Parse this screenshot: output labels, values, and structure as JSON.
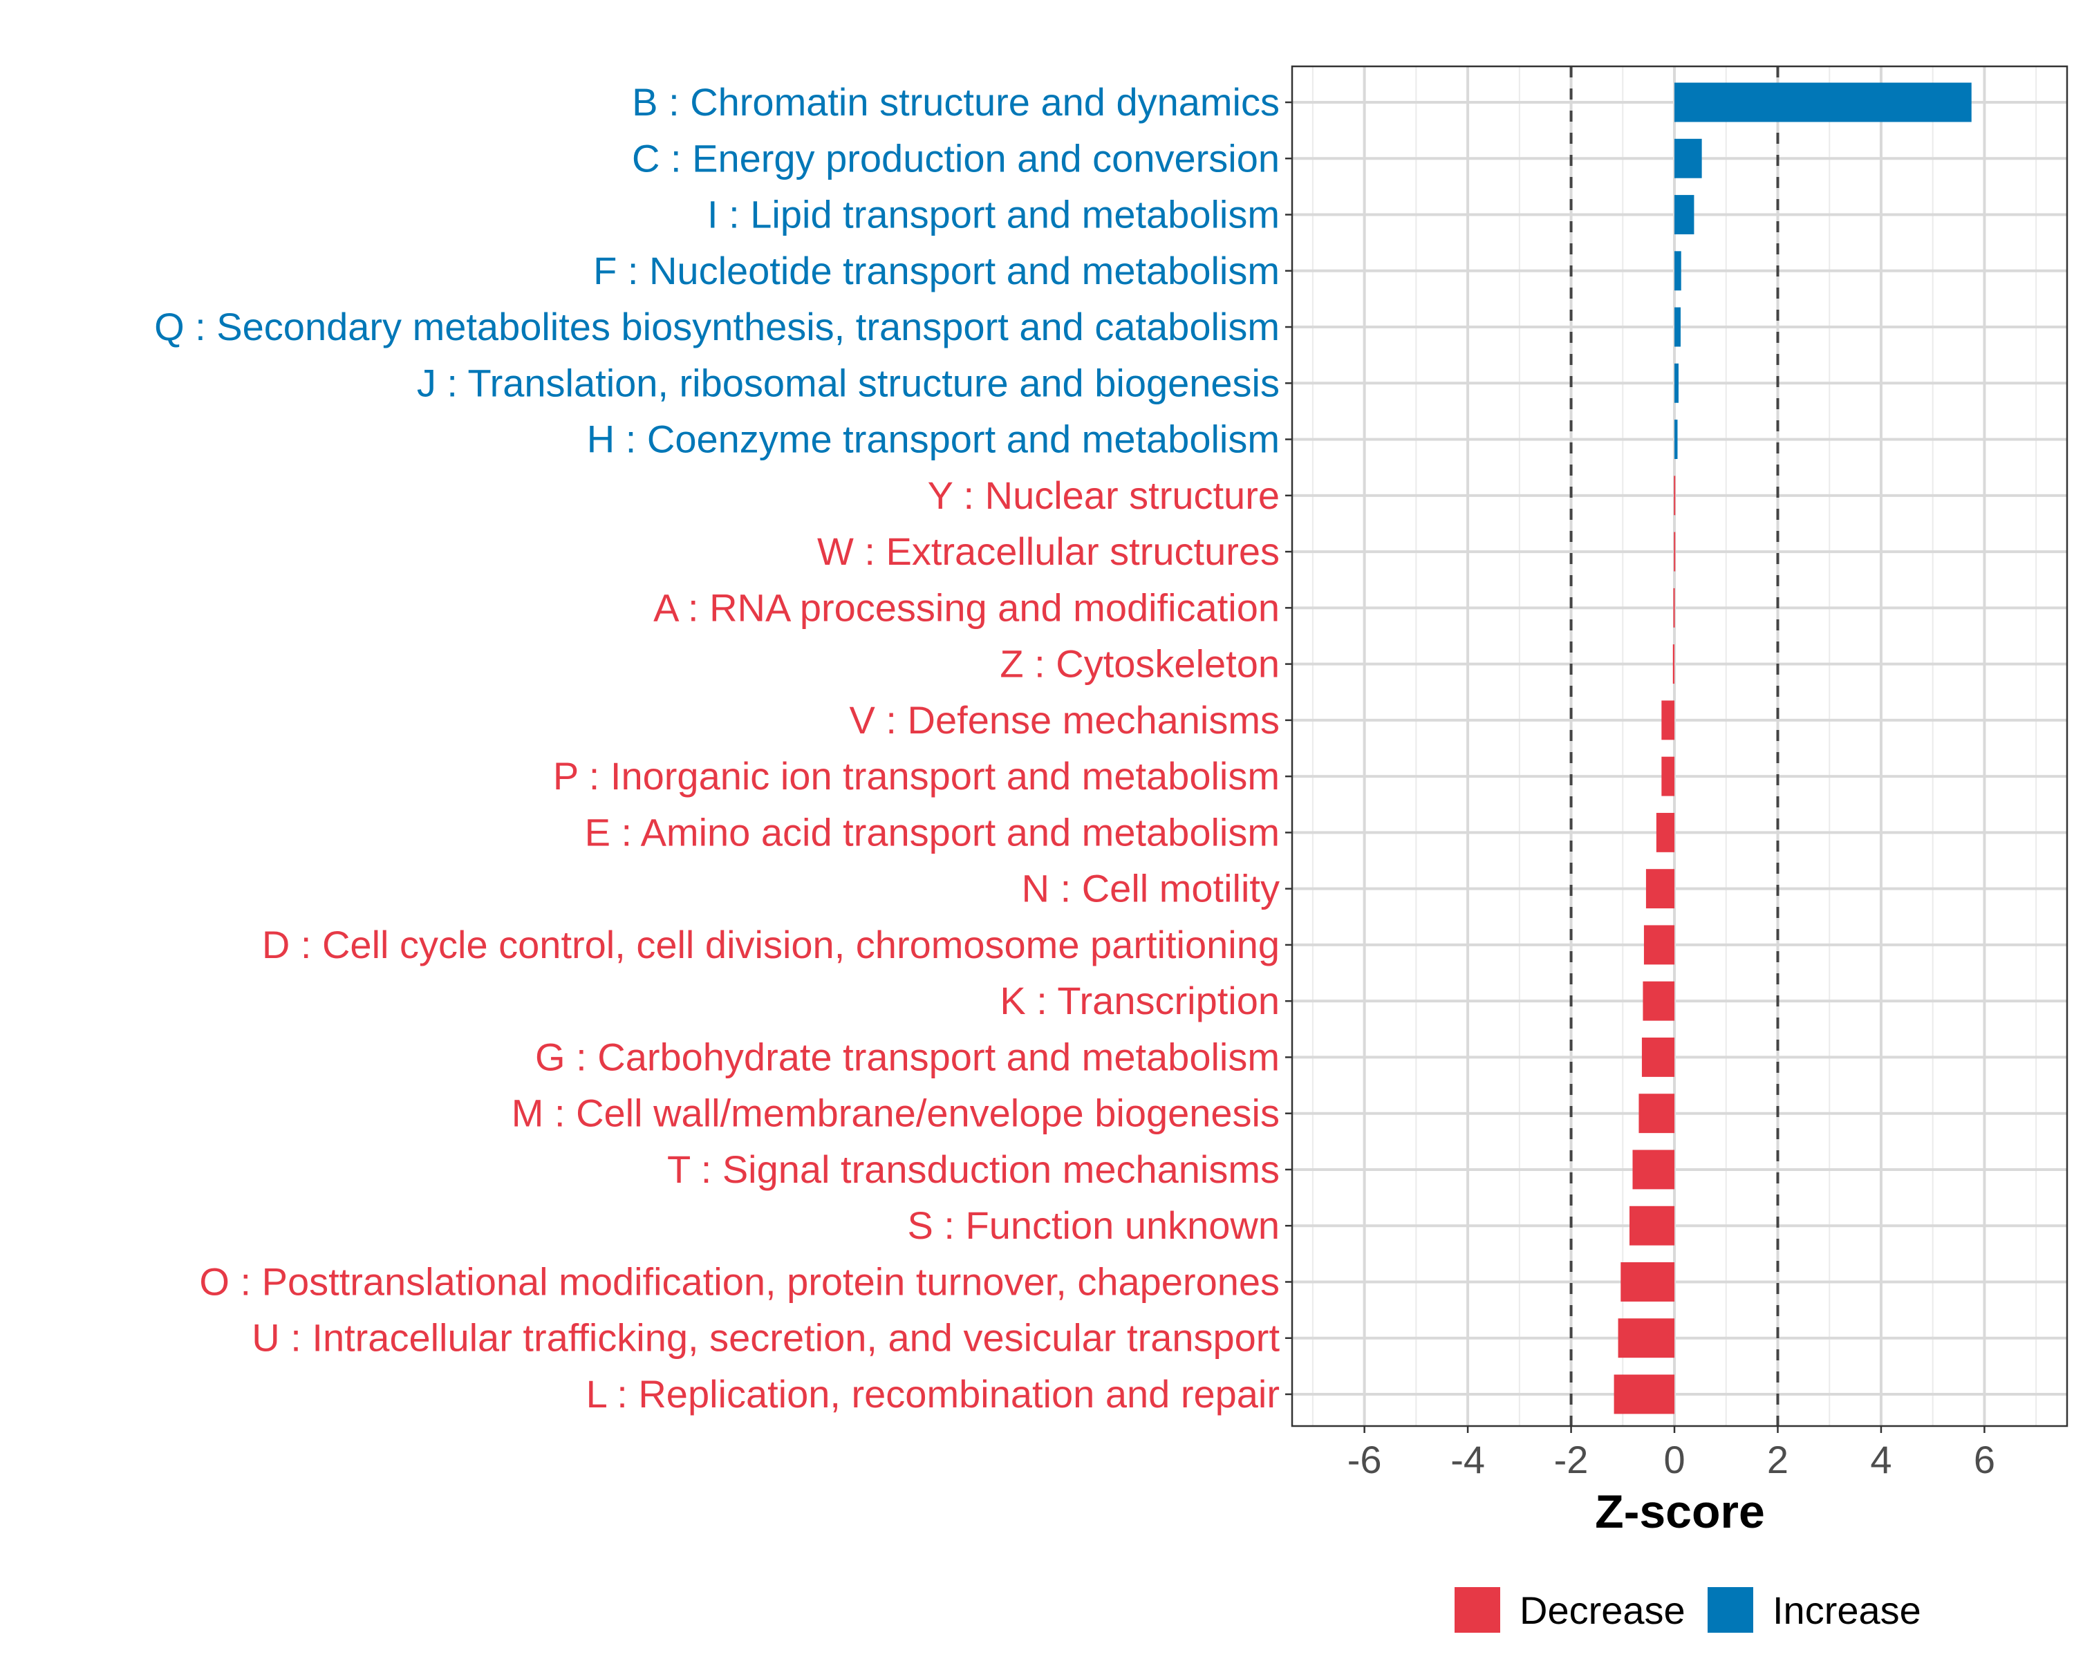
{
  "chart_data": {
    "type": "bar",
    "orientation": "horizontal",
    "title": "",
    "xlabel": "Z-score",
    "ylabel": "",
    "xlim": [
      -7.4,
      7.6
    ],
    "xticks": [
      -6,
      -4,
      -2,
      0,
      2,
      4,
      6
    ],
    "xtick_labels": [
      "-6",
      "-4",
      "-2",
      "0",
      "2",
      "4",
      "6"
    ],
    "reference_lines": [
      -2,
      2
    ],
    "grid": true,
    "legend_position": "bottom",
    "legend": [
      {
        "name": "Decrease",
        "color": "#E63946"
      },
      {
        "name": "Increase",
        "color": "#0177B7"
      }
    ],
    "categories": [
      "B : Chromatin structure and dynamics",
      "C : Energy production and conversion",
      "I : Lipid transport and metabolism",
      "F : Nucleotide transport and metabolism",
      "Q : Secondary metabolites biosynthesis, transport and catabolism",
      "J : Translation, ribosomal structure and biogenesis",
      "H : Coenzyme transport and metabolism",
      "Y : Nuclear structure",
      "W : Extracellular structures",
      "A : RNA processing and modification",
      "Z : Cytoskeleton",
      "V : Defense mechanisms",
      "P : Inorganic ion transport and metabolism",
      "E : Amino acid transport and metabolism",
      "N : Cell motility",
      "D : Cell cycle control, cell division, chromosome partitioning",
      "K : Transcription",
      "G : Carbohydrate transport and metabolism",
      "M : Cell wall/membrane/envelope biogenesis",
      "T : Signal transduction mechanisms",
      "S : Function unknown",
      "O : Posttranslational modification, protein turnover, chaperones",
      "U : Intracellular trafficking, secretion, and vesicular transport",
      "L : Replication, recombination and repair"
    ],
    "values": [
      5.75,
      0.53,
      0.38,
      0.13,
      0.12,
      0.08,
      0.06,
      -0.01,
      -0.01,
      -0.02,
      -0.03,
      -0.25,
      -0.25,
      -0.35,
      -0.55,
      -0.59,
      -0.61,
      -0.63,
      -0.69,
      -0.81,
      -0.87,
      -1.04,
      -1.09,
      -1.17
    ]
  }
}
